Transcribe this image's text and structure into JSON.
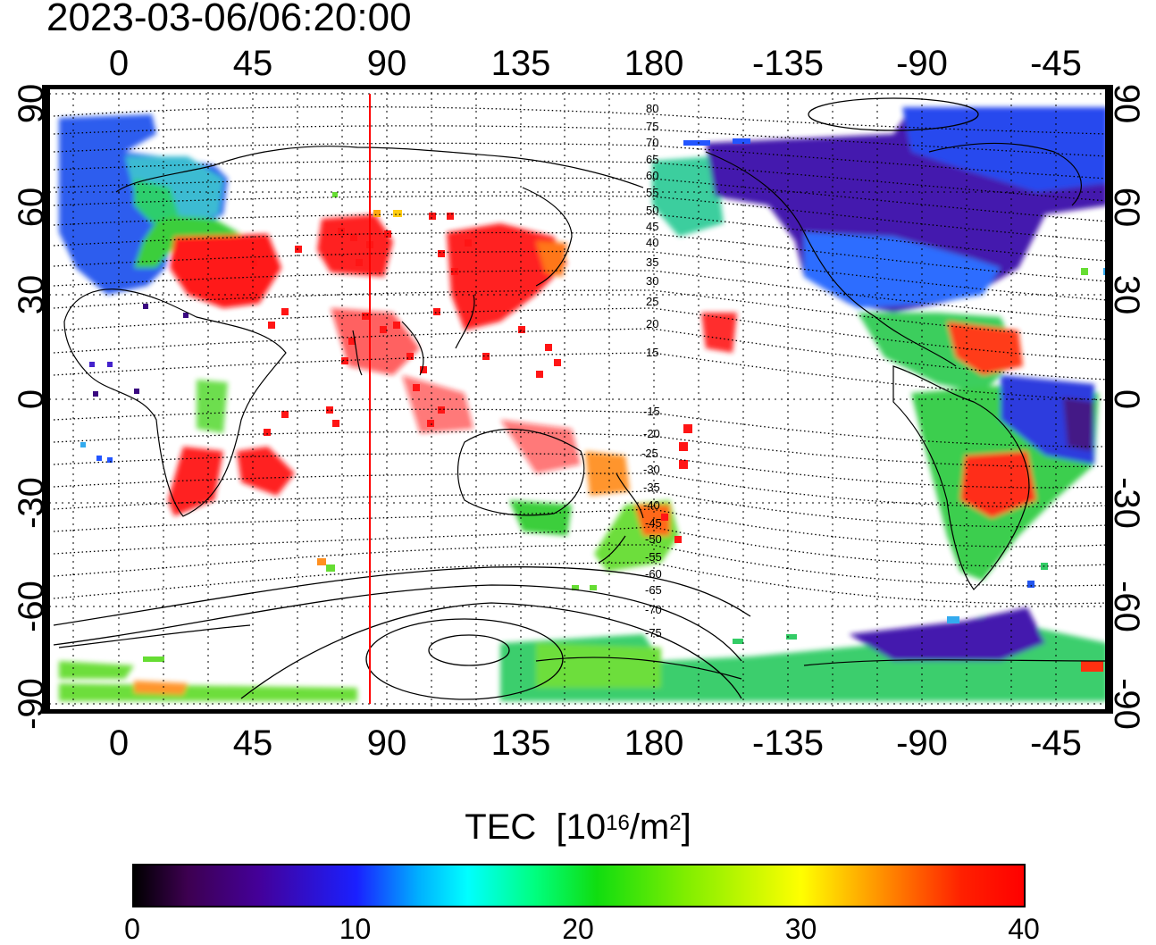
{
  "title": "2023-03-06/06:20:00",
  "map": {
    "top_lon_labels": [
      "0",
      "45",
      "90",
      "135",
      "180",
      "-135",
      "-90",
      "-45"
    ],
    "bottom_lon_labels": [
      "0",
      "45",
      "90",
      "135",
      "180",
      "-135",
      "-90",
      "-45"
    ],
    "left_lat_labels": [
      "90",
      "60",
      "30",
      "0",
      "-30",
      "-60",
      "-90"
    ],
    "right_lat_labels": [
      "90",
      "60",
      "30",
      "0",
      "-30",
      "-60",
      "-90"
    ],
    "contour_labels": [
      "80",
      "75",
      "70",
      "65",
      "60",
      "55",
      "50",
      "45",
      "40",
      "35",
      "30",
      "25",
      "20",
      "15",
      "-15",
      "-20",
      "-25",
      "-30",
      "-35",
      "-40",
      "-45",
      "-50",
      "-55",
      "-60",
      "-65",
      "-70",
      "-75"
    ],
    "marker_line_color": "#ff0000",
    "grid": true
  },
  "colorbar": {
    "title": "TEC",
    "unit_prefix": "[10",
    "unit_exp": "16",
    "unit_mid": "/m",
    "unit_exp2": "2",
    "unit_suffix": "]",
    "ticks": [
      "0",
      "10",
      "20",
      "30",
      "40"
    ],
    "colormap": [
      "#000000",
      "#440099",
      "#1a20ff",
      "#00ffff",
      "#10dd10",
      "#ffff00",
      "#ff2000",
      "#ff0000"
    ]
  }
}
